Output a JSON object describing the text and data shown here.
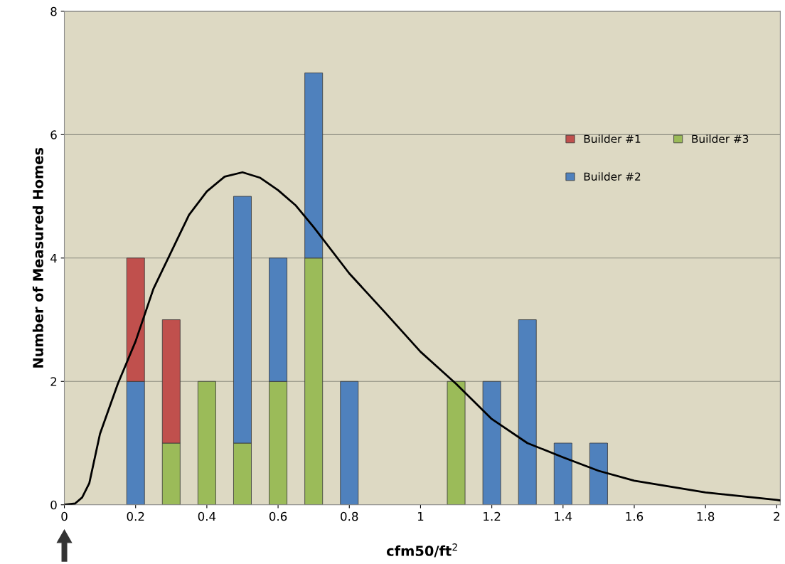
{
  "chart_data": {
    "type": "bar",
    "stacked": true,
    "xlabel": "cfm50/ft$^{2}$",
    "ylabel": "Number of Measured Homes",
    "x": [
      0.2,
      0.3,
      0.4,
      0.5,
      0.6,
      0.7,
      0.8,
      1.1,
      1.2,
      1.3,
      1.4,
      1.5
    ],
    "series": [
      {
        "name": "Builder #3",
        "color": "#9bbb59",
        "values": [
          null,
          1,
          2,
          1,
          2,
          4,
          null,
          2,
          null,
          null,
          null,
          null
        ]
      },
      {
        "name": "Builder #2",
        "color": "#4f81bd",
        "values": [
          2,
          null,
          null,
          4,
          2,
          3,
          2,
          null,
          2,
          3,
          1,
          1
        ]
      },
      {
        "name": "Builder #1",
        "color": "#c0504d",
        "values": [
          2,
          2,
          null,
          null,
          null,
          null,
          null,
          null,
          null,
          null,
          null,
          null
        ]
      },
      {
        "type": "line",
        "color": "#000000",
        "x": [
          0,
          0.03,
          0.05,
          0.07,
          0.1,
          0.15,
          0.2,
          0.25,
          0.3,
          0.35,
          0.4,
          0.45,
          0.5,
          0.55,
          0.6,
          0.65,
          0.7,
          0.8,
          0.9,
          1.0,
          1.1,
          1.2,
          1.3,
          1.4,
          1.5,
          1.6,
          1.8,
          2.0,
          2.01
        ],
        "values": [
          0,
          0.02,
          0.12,
          0.35,
          1.15,
          1.96,
          2.65,
          3.5,
          4.1,
          4.7,
          5.08,
          5.32,
          5.39,
          5.3,
          5.1,
          4.85,
          4.5,
          3.75,
          3.12,
          2.48,
          1.96,
          1.39,
          1.0,
          0.77,
          0.55,
          0.39,
          0.2,
          0.08,
          0.07
        ]
      }
    ],
    "xlim": [
      0,
      2.01
    ],
    "xticks": [
      0,
      0.2,
      0.4,
      0.6,
      0.8,
      1,
      1.2,
      1.4,
      1.6,
      1.8,
      2
    ],
    "ylim": [
      0,
      8
    ],
    "yticks": [
      0,
      2,
      4,
      6,
      8
    ],
    "grid": "y",
    "legend": "top right"
  }
}
